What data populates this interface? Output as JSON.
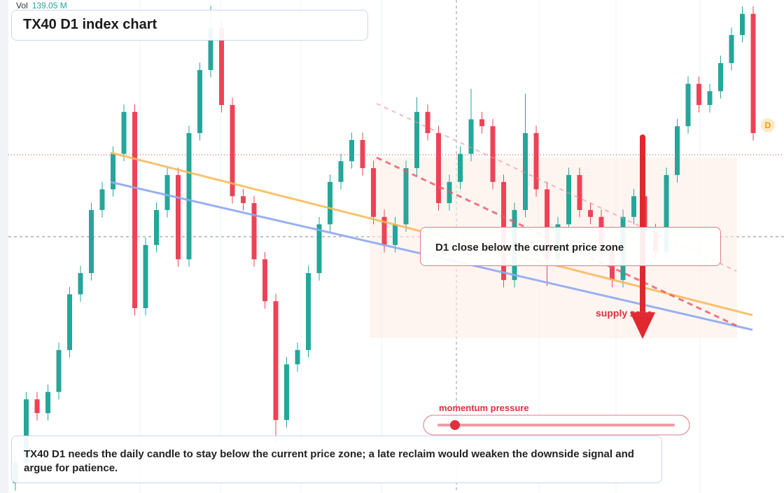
{
  "chart_data": {
    "type": "candlestick",
    "title": "TX40 D1 index chart",
    "volume_label": "Vol",
    "volume_value": "139.05 M",
    "annotation": "D1 close below the current price zone",
    "zone_label": "supply zone",
    "momentum_label": "momentum pressure",
    "marker": "D",
    "caption": "TX40 D1 needs the daily candle to stay below the current price zone; a late reclaim would weaken the downside signal and argue for patience.",
    "up_color": "#26a69a",
    "down_color": "#ef4257",
    "ylim": [
      0,
      100
    ],
    "open": [
      2,
      6.2,
      19,
      16.2,
      20.5,
      29,
      40.3,
      44.6,
      57.4,
      61.6,
      68.8,
      77.3,
      37.5,
      50.3,
      57.4,
      64.5,
      47.4,
      73,
      85.8,
      94.3,
      78.7,
      60.2,
      58.8,
      47.4,
      38.9,
      14.8,
      26.1,
      29,
      44.6,
      54.5,
      63.1,
      67.3,
      71.6,
      65.9,
      56,
      50.3,
      54.5,
      65.9,
      77.3,
      73,
      58.8,
      63.1,
      68.8,
      75.8,
      74.4,
      63.1,
      43.2,
      57.4,
      73,
      61.6,
      47.4,
      54.5,
      64.5,
      57.4,
      56,
      48.9,
      43.2,
      56,
      60.2,
      53.1,
      48.9,
      64.5,
      74.4,
      83,
      78.7,
      81.5,
      87.2,
      92.9,
      97.2
    ],
    "high": [
      7.7,
      20.5,
      20.5,
      22,
      30.5,
      41.8,
      46.1,
      58.9,
      63.1,
      70.3,
      78.8,
      78.8,
      51.8,
      58.9,
      66,
      66,
      74.5,
      87.3,
      98.8,
      95.8,
      80.2,
      61.7,
      60.3,
      48.9,
      40.4,
      27.6,
      30.5,
      46.1,
      56,
      64.6,
      68.8,
      73.1,
      73.1,
      67.4,
      57.5,
      56,
      67.4,
      80.3,
      78.8,
      74.5,
      64.6,
      70.3,
      82,
      77.3,
      75.9,
      64.6,
      58.9,
      81,
      74.5,
      63.1,
      56,
      66,
      66,
      58.9,
      57.5,
      50.4,
      57.5,
      61.7,
      61.7,
      54.6,
      66,
      75.9,
      84.5,
      84.5,
      83,
      88.7,
      94.4,
      98.7,
      98.7
    ],
    "low": [
      0.5,
      4.7,
      14.7,
      14.7,
      19,
      27.5,
      38.8,
      43.1,
      55.9,
      60.1,
      67.3,
      36,
      36,
      48.8,
      55.9,
      45.9,
      45.9,
      71.5,
      84.3,
      77.2,
      58.7,
      57.3,
      45.9,
      37.4,
      10,
      13.3,
      24.6,
      27.5,
      43.1,
      53,
      61.6,
      65.8,
      64.4,
      54.5,
      48.8,
      48.8,
      53,
      64.4,
      71.5,
      57.3,
      57.3,
      61.6,
      67.3,
      72.9,
      61.6,
      41.7,
      41.7,
      55.9,
      60.1,
      42,
      45.9,
      53,
      55.9,
      54.5,
      47.4,
      41.7,
      41.7,
      54.5,
      51.6,
      47.4,
      47.4,
      63,
      72.9,
      77.2,
      77.2,
      80,
      85.7,
      91.4,
      71.5
    ],
    "close": [
      6.2,
      19,
      16.2,
      20.5,
      29,
      40.3,
      44.6,
      57.4,
      61.6,
      68.8,
      77.3,
      37.5,
      50.3,
      57.4,
      64.5,
      47.4,
      73,
      85.8,
      94.3,
      78.7,
      60.2,
      58.8,
      47.4,
      38.9,
      14.8,
      26.1,
      29,
      44.6,
      54.5,
      63.1,
      67.3,
      71.6,
      65.9,
      56,
      50.3,
      54.5,
      65.9,
      77.3,
      73,
      58.8,
      63.1,
      68.8,
      75.8,
      74.4,
      63.1,
      43.2,
      57.4,
      73,
      61.6,
      47.4,
      54.5,
      64.5,
      57.4,
      56,
      48.9,
      43.2,
      56,
      60.2,
      53.1,
      48.9,
      64.5,
      74.4,
      83,
      78.7,
      81.5,
      87.2,
      92.9,
      97.2,
      73
    ]
  }
}
